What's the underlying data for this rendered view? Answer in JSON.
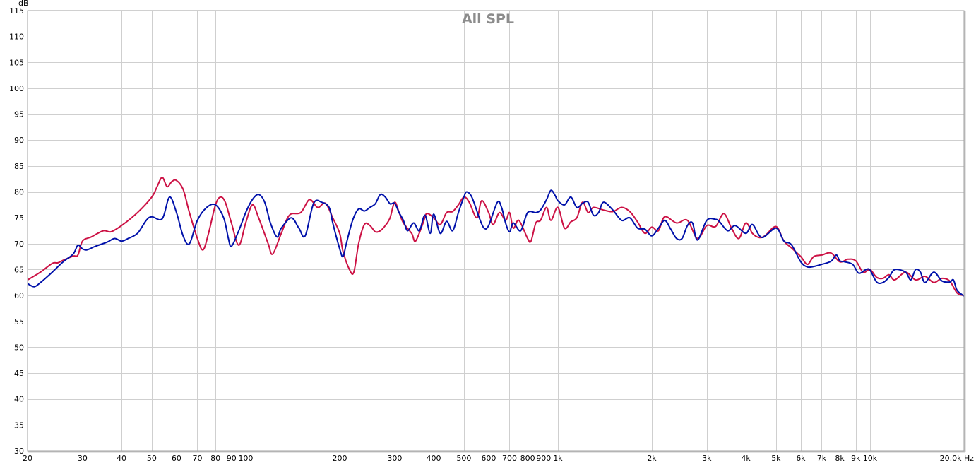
{
  "chart_data": {
    "type": "line",
    "title": "All SPL",
    "ylabel": "dB",
    "xlabel": "",
    "x_unit": "Hz",
    "xscale": "log",
    "xlim": [
      20,
      20000
    ],
    "ylim": [
      30,
      115
    ],
    "grid": true,
    "yticks": [
      30,
      35,
      40,
      45,
      50,
      55,
      60,
      65,
      70,
      75,
      80,
      85,
      90,
      95,
      100,
      105,
      110,
      115
    ],
    "xticks": [
      {
        "value": 20,
        "label": "20"
      },
      {
        "value": 30,
        "label": "30"
      },
      {
        "value": 40,
        "label": "40"
      },
      {
        "value": 50,
        "label": "50"
      },
      {
        "value": 60,
        "label": "60"
      },
      {
        "value": 70,
        "label": "70"
      },
      {
        "value": 80,
        "label": "80"
      },
      {
        "value": 90,
        "label": "90"
      },
      {
        "value": 100,
        "label": "100"
      },
      {
        "value": 200,
        "label": "200"
      },
      {
        "value": 300,
        "label": "300"
      },
      {
        "value": 400,
        "label": "400"
      },
      {
        "value": 500,
        "label": "500"
      },
      {
        "value": 600,
        "label": "600"
      },
      {
        "value": 700,
        "label": "700"
      },
      {
        "value": 800,
        "label": "800"
      },
      {
        "value": 900,
        "label": "900"
      },
      {
        "value": 1000,
        "label": "1k"
      },
      {
        "value": 2000,
        "label": "2k"
      },
      {
        "value": 3000,
        "label": "3k"
      },
      {
        "value": 4000,
        "label": "4k"
      },
      {
        "value": 5000,
        "label": "5k"
      },
      {
        "value": 6000,
        "label": "6k"
      },
      {
        "value": 7000,
        "label": "7k"
      },
      {
        "value": 8000,
        "label": "8k"
      },
      {
        "value": 9000,
        "label": "9k"
      },
      {
        "value": 10000,
        "label": "10k"
      },
      {
        "value": 20000,
        "label": "20,0k Hz"
      }
    ],
    "series": [
      {
        "color": "#cc1144",
        "points": [
          [
            20,
            63
          ],
          [
            22,
            64.5
          ],
          [
            24,
            66.2
          ],
          [
            25,
            66.3
          ],
          [
            26,
            66.8
          ],
          [
            28,
            67.6
          ],
          [
            29,
            67.8
          ],
          [
            30,
            70.5
          ],
          [
            32,
            71.3
          ],
          [
            35,
            72.5
          ],
          [
            37,
            72.3
          ],
          [
            40,
            73.5
          ],
          [
            45,
            76
          ],
          [
            50,
            79
          ],
          [
            52,
            81
          ],
          [
            54,
            82.8
          ],
          [
            56,
            81
          ],
          [
            58,
            82
          ],
          [
            60,
            82.2
          ],
          [
            63,
            80.5
          ],
          [
            66,
            76
          ],
          [
            70,
            71
          ],
          [
            73,
            68.8
          ],
          [
            76,
            72
          ],
          [
            80,
            77.5
          ],
          [
            83,
            79
          ],
          [
            86,
            78
          ],
          [
            90,
            74
          ],
          [
            95,
            69.7
          ],
          [
            100,
            74
          ],
          [
            105,
            77.5
          ],
          [
            110,
            75
          ],
          [
            118,
            70
          ],
          [
            122,
            68
          ],
          [
            130,
            72
          ],
          [
            138,
            75.5
          ],
          [
            150,
            76
          ],
          [
            160,
            78.5
          ],
          [
            170,
            77
          ],
          [
            180,
            77.8
          ],
          [
            190,
            75
          ],
          [
            200,
            72
          ],
          [
            205,
            68.5
          ],
          [
            215,
            65
          ],
          [
            222,
            64.5
          ],
          [
            230,
            70
          ],
          [
            240,
            73.7
          ],
          [
            250,
            73.5
          ],
          [
            260,
            72.3
          ],
          [
            270,
            72.5
          ],
          [
            280,
            73.5
          ],
          [
            290,
            75
          ],
          [
            300,
            78
          ],
          [
            310,
            76
          ],
          [
            320,
            74
          ],
          [
            340,
            72
          ],
          [
            350,
            70.5
          ],
          [
            370,
            74
          ],
          [
            380,
            75.8
          ],
          [
            400,
            75
          ],
          [
            420,
            73.7
          ],
          [
            440,
            76
          ],
          [
            460,
            76.2
          ],
          [
            480,
            77.5
          ],
          [
            500,
            79
          ],
          [
            520,
            78
          ],
          [
            550,
            75
          ],
          [
            570,
            78.3
          ],
          [
            600,
            76
          ],
          [
            620,
            73.7
          ],
          [
            650,
            76
          ],
          [
            680,
            74.5
          ],
          [
            700,
            76
          ],
          [
            720,
            73
          ],
          [
            750,
            74.5
          ],
          [
            800,
            71
          ],
          [
            820,
            70.5
          ],
          [
            850,
            74
          ],
          [
            880,
            74.5
          ],
          [
            920,
            77
          ],
          [
            950,
            74.5
          ],
          [
            1000,
            77
          ],
          [
            1050,
            73
          ],
          [
            1100,
            74.2
          ],
          [
            1150,
            75
          ],
          [
            1200,
            78
          ],
          [
            1250,
            76
          ],
          [
            1300,
            77
          ],
          [
            1400,
            76.5
          ],
          [
            1500,
            76.2
          ],
          [
            1600,
            77
          ],
          [
            1700,
            76.2
          ],
          [
            1800,
            74.2
          ],
          [
            1900,
            72
          ],
          [
            2000,
            73.2
          ],
          [
            2100,
            72.5
          ],
          [
            2200,
            75.2
          ],
          [
            2400,
            74
          ],
          [
            2600,
            74.5
          ],
          [
            2800,
            71
          ],
          [
            3000,
            73.5
          ],
          [
            3200,
            73.3
          ],
          [
            3400,
            75.8
          ],
          [
            3600,
            73
          ],
          [
            3800,
            71
          ],
          [
            4000,
            74
          ],
          [
            4200,
            72
          ],
          [
            4400,
            71.2
          ],
          [
            4600,
            71.5
          ],
          [
            5000,
            73.3
          ],
          [
            5300,
            70.5
          ],
          [
            5600,
            69.2
          ],
          [
            6000,
            67.5
          ],
          [
            6300,
            66
          ],
          [
            6600,
            67.5
          ],
          [
            7000,
            67.8
          ],
          [
            7500,
            68.2
          ],
          [
            8000,
            66.5
          ],
          [
            8500,
            67
          ],
          [
            9000,
            66.7
          ],
          [
            9500,
            64.5
          ],
          [
            10000,
            65
          ],
          [
            10500,
            63.5
          ],
          [
            11000,
            63.3
          ],
          [
            11500,
            64
          ],
          [
            12000,
            63
          ],
          [
            13000,
            64.5
          ],
          [
            14000,
            63
          ],
          [
            15000,
            63.7
          ],
          [
            16000,
            62.5
          ],
          [
            17000,
            63.3
          ],
          [
            18000,
            62.8
          ],
          [
            19000,
            60.5
          ],
          [
            20000,
            60
          ]
        ]
      },
      {
        "color": "#0011aa",
        "points": [
          [
            20,
            62.3
          ],
          [
            21,
            61.7
          ],
          [
            22,
            62.5
          ],
          [
            24,
            64.5
          ],
          [
            26,
            66.5
          ],
          [
            28,
            68
          ],
          [
            29,
            69.7
          ],
          [
            30,
            69
          ],
          [
            31,
            68.8
          ],
          [
            33,
            69.5
          ],
          [
            36,
            70.3
          ],
          [
            38,
            71
          ],
          [
            40,
            70.5
          ],
          [
            42,
            71
          ],
          [
            45,
            72
          ],
          [
            48,
            74.5
          ],
          [
            50,
            75.2
          ],
          [
            54,
            74.8
          ],
          [
            57,
            79
          ],
          [
            60,
            76
          ],
          [
            63,
            71.5
          ],
          [
            66,
            70
          ],
          [
            70,
            74.5
          ],
          [
            75,
            77
          ],
          [
            80,
            77.5
          ],
          [
            85,
            75
          ],
          [
            88,
            71
          ],
          [
            90,
            69.5
          ],
          [
            95,
            72.5
          ],
          [
            100,
            76
          ],
          [
            105,
            78.5
          ],
          [
            110,
            79.5
          ],
          [
            115,
            78
          ],
          [
            120,
            74
          ],
          [
            126,
            71.3
          ],
          [
            130,
            73
          ],
          [
            140,
            75
          ],
          [
            148,
            73
          ],
          [
            155,
            71.5
          ],
          [
            165,
            77.8
          ],
          [
            175,
            78
          ],
          [
            185,
            77
          ],
          [
            190,
            74
          ],
          [
            200,
            69
          ],
          [
            205,
            67.5
          ],
          [
            210,
            70
          ],
          [
            220,
            74.5
          ],
          [
            230,
            76.7
          ],
          [
            240,
            76.3
          ],
          [
            250,
            77
          ],
          [
            260,
            77.7
          ],
          [
            270,
            79.5
          ],
          [
            280,
            79
          ],
          [
            290,
            77.7
          ],
          [
            300,
            77.8
          ],
          [
            310,
            76
          ],
          [
            320,
            74.5
          ],
          [
            330,
            72.5
          ],
          [
            345,
            74
          ],
          [
            360,
            72.5
          ],
          [
            375,
            75.5
          ],
          [
            390,
            72
          ],
          [
            400,
            75.7
          ],
          [
            420,
            72
          ],
          [
            440,
            74.3
          ],
          [
            460,
            72.5
          ],
          [
            480,
            76
          ],
          [
            500,
            79
          ],
          [
            510,
            80
          ],
          [
            530,
            79
          ],
          [
            560,
            75
          ],
          [
            580,
            73
          ],
          [
            600,
            73.5
          ],
          [
            640,
            78
          ],
          [
            660,
            77
          ],
          [
            680,
            74
          ],
          [
            700,
            72.3
          ],
          [
            720,
            74
          ],
          [
            760,
            72.5
          ],
          [
            800,
            76
          ],
          [
            850,
            76
          ],
          [
            880,
            76.5
          ],
          [
            920,
            78.5
          ],
          [
            950,
            80.3
          ],
          [
            980,
            79.3
          ],
          [
            1000,
            78.3
          ],
          [
            1050,
            77.5
          ],
          [
            1100,
            79
          ],
          [
            1150,
            77
          ],
          [
            1200,
            77.8
          ],
          [
            1250,
            78
          ],
          [
            1300,
            75.5
          ],
          [
            1350,
            76
          ],
          [
            1400,
            78
          ],
          [
            1500,
            76.5
          ],
          [
            1600,
            74.5
          ],
          [
            1700,
            75
          ],
          [
            1800,
            73
          ],
          [
            1900,
            72.8
          ],
          [
            2000,
            71.5
          ],
          [
            2100,
            73
          ],
          [
            2200,
            74.5
          ],
          [
            2300,
            72.8
          ],
          [
            2400,
            71
          ],
          [
            2500,
            71
          ],
          [
            2600,
            73.5
          ],
          [
            2700,
            74
          ],
          [
            2800,
            70.7
          ],
          [
            3000,
            74.5
          ],
          [
            3200,
            74.7
          ],
          [
            3300,
            74.2
          ],
          [
            3500,
            72.5
          ],
          [
            3700,
            73.5
          ],
          [
            4000,
            72
          ],
          [
            4200,
            73.7
          ],
          [
            4500,
            71.2
          ],
          [
            5000,
            73
          ],
          [
            5300,
            70.5
          ],
          [
            5600,
            69.8
          ],
          [
            6000,
            66.5
          ],
          [
            6300,
            65.5
          ],
          [
            6600,
            65.6
          ],
          [
            7000,
            66
          ],
          [
            7500,
            66.6
          ],
          [
            7800,
            67.8
          ],
          [
            8000,
            66.7
          ],
          [
            8300,
            66.5
          ],
          [
            8800,
            66
          ],
          [
            9200,
            64.3
          ],
          [
            9700,
            65
          ],
          [
            10000,
            64.9
          ],
          [
            10500,
            62.6
          ],
          [
            11000,
            62.5
          ],
          [
            11500,
            63.5
          ],
          [
            12000,
            65
          ],
          [
            13000,
            64.5
          ],
          [
            13500,
            63
          ],
          [
            14000,
            65
          ],
          [
            14500,
            64.5
          ],
          [
            15000,
            62.5
          ],
          [
            16000,
            64.5
          ],
          [
            17000,
            62.8
          ],
          [
            18000,
            62.6
          ],
          [
            18500,
            63
          ],
          [
            19000,
            61
          ],
          [
            20000,
            59.9
          ]
        ]
      }
    ]
  }
}
